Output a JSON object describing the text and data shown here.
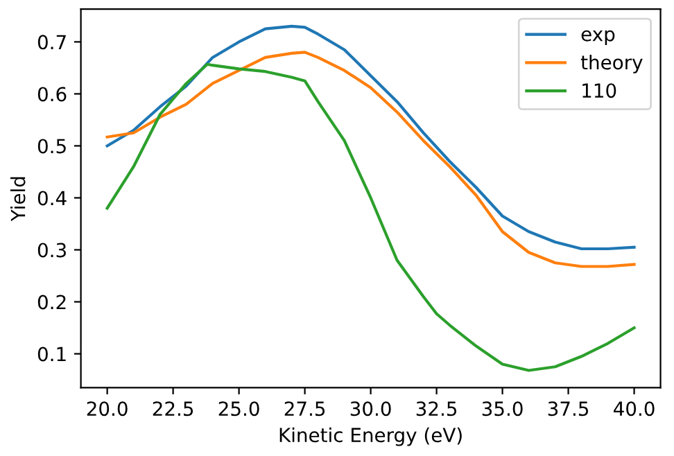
{
  "chart_data": {
    "type": "line",
    "xlabel": "Kinetic Energy (eV)",
    "ylabel": "Yield",
    "xlim": [
      19,
      41
    ],
    "ylim": [
      0.035,
      0.763
    ],
    "xticks": [
      {
        "value": 20,
        "label": "20.0"
      },
      {
        "value": 22.5,
        "label": "22.5"
      },
      {
        "value": 25,
        "label": "25.0"
      },
      {
        "value": 27.5,
        "label": "27.5"
      },
      {
        "value": 30,
        "label": "30.0"
      },
      {
        "value": 32.5,
        "label": "32.5"
      },
      {
        "value": 35,
        "label": "35.0"
      },
      {
        "value": 37.5,
        "label": "37.5"
      },
      {
        "value": 40,
        "label": "40.0"
      }
    ],
    "yticks": [
      0.1,
      0.2,
      0.3,
      0.4,
      0.5,
      0.6,
      0.7
    ],
    "grid": false,
    "legend": "top right",
    "marker": "none",
    "line_style": "solid",
    "series": [
      {
        "name": "exp",
        "color": "#1f77b4",
        "x": [
          20,
          21,
          22,
          23,
          24,
          25,
          26,
          27,
          27.5,
          28,
          29,
          30,
          31,
          32,
          33,
          34,
          35,
          36,
          37,
          38,
          39,
          40
        ],
        "values": [
          0.5,
          0.53,
          0.575,
          0.615,
          0.67,
          0.7,
          0.725,
          0.73,
          0.728,
          0.715,
          0.685,
          0.635,
          0.585,
          0.525,
          0.47,
          0.42,
          0.365,
          0.335,
          0.315,
          0.302,
          0.302,
          0.305
        ]
      },
      {
        "name": "theory",
        "color": "#ff7f0e",
        "x": [
          20,
          21,
          22,
          23,
          24,
          25,
          26,
          27,
          27.5,
          28,
          29,
          30,
          31,
          32,
          33,
          34,
          35,
          36,
          37,
          38,
          39,
          40
        ],
        "values": [
          0.517,
          0.525,
          0.555,
          0.58,
          0.62,
          0.645,
          0.67,
          0.678,
          0.68,
          0.67,
          0.645,
          0.612,
          0.565,
          0.51,
          0.46,
          0.405,
          0.335,
          0.295,
          0.275,
          0.268,
          0.268,
          0.272
        ]
      },
      {
        "name": "110",
        "color": "#2ca02c",
        "x": [
          20,
          21,
          22,
          23,
          23.8,
          24,
          25,
          26,
          27,
          27.5,
          28,
          29,
          30,
          31,
          32,
          32.5,
          33,
          34,
          35,
          36,
          37,
          38,
          39,
          40
        ],
        "values": [
          0.38,
          0.46,
          0.56,
          0.62,
          0.657,
          0.655,
          0.648,
          0.643,
          0.632,
          0.625,
          0.585,
          0.51,
          0.4,
          0.28,
          0.21,
          0.177,
          0.155,
          0.115,
          0.08,
          0.068,
          0.075,
          0.095,
          0.12,
          0.15
        ]
      }
    ]
  }
}
